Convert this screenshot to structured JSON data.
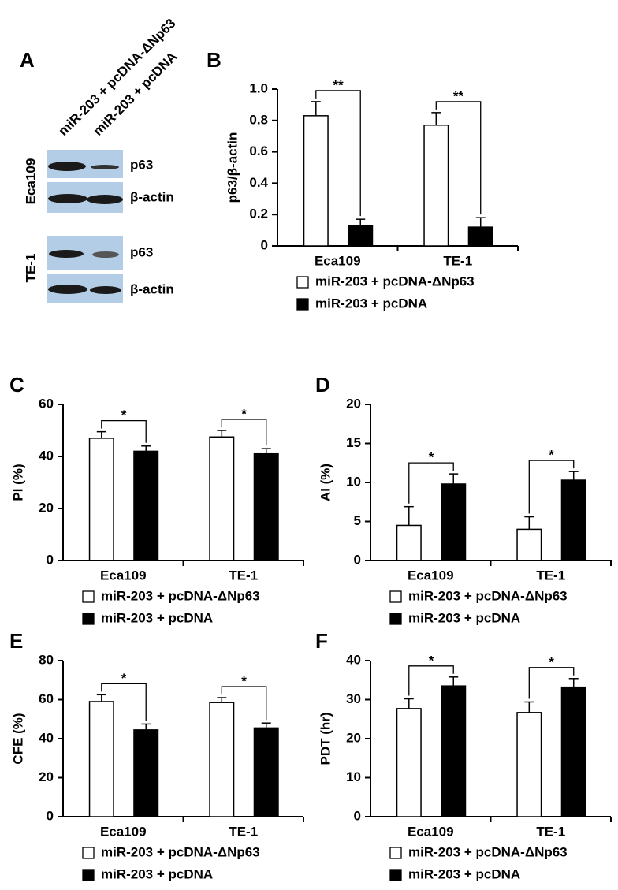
{
  "blot": {
    "panel_label": "A",
    "lanes": [
      "miR-203 + pcDNA-ΔNp63",
      "miR-203 + pcDNA"
    ],
    "cell_lines": [
      {
        "name": "Eca109",
        "bands": [
          "p63",
          "β-actin"
        ]
      },
      {
        "name": "TE-1",
        "bands": [
          "p63",
          "β-actin"
        ]
      }
    ]
  },
  "chart_data": [
    {
      "type": "bar",
      "panel_label": "B",
      "y_label": "p63/β-actin",
      "categories": [
        "Eca109",
        "TE-1"
      ],
      "series": [
        {
          "name": "miR-203 + pcDNA-ΔNp63",
          "color": "#ffffff",
          "values": [
            0.83,
            0.77
          ],
          "errors": [
            0.09,
            0.08
          ]
        },
        {
          "name": "miR-203 + pcDNA",
          "color": "#000000",
          "values": [
            0.13,
            0.12
          ],
          "errors": [
            0.04,
            0.06
          ]
        }
      ],
      "significance": [
        "**",
        "**"
      ],
      "ylim": [
        0,
        1.0
      ],
      "yticks": [
        0,
        0.2,
        0.4,
        0.6,
        0.8,
        {
          "value": 1.0,
          "label": "1.0"
        }
      ]
    },
    {
      "type": "bar",
      "panel_label": "C",
      "y_label": "PI (%)",
      "categories": [
        "Eca109",
        "TE-1"
      ],
      "series": [
        {
          "name": "miR-203 + pcDNA-ΔNp63",
          "color": "#ffffff",
          "values": [
            47,
            47.5
          ],
          "errors": [
            2.5,
            2.5
          ]
        },
        {
          "name": "miR-203 + pcDNA",
          "color": "#000000",
          "values": [
            42,
            41
          ],
          "errors": [
            2,
            2
          ]
        }
      ],
      "significance": [
        "*",
        "*"
      ],
      "ylim": [
        0,
        60
      ],
      "yticks": [
        0,
        20,
        40,
        60
      ]
    },
    {
      "type": "bar",
      "panel_label": "D",
      "y_label": "AI (%)",
      "categories": [
        "Eca109",
        "TE-1"
      ],
      "series": [
        {
          "name": "miR-203 + pcDNA-ΔNp63",
          "color": "#ffffff",
          "values": [
            4.5,
            4.0
          ],
          "errors": [
            2.4,
            1.6
          ]
        },
        {
          "name": "miR-203 + pcDNA",
          "color": "#000000",
          "values": [
            9.8,
            10.3
          ],
          "errors": [
            1.3,
            1.1
          ]
        }
      ],
      "significance": [
        "*",
        "*"
      ],
      "ylim": [
        0,
        20
      ],
      "yticks": [
        0,
        5,
        10,
        15,
        20
      ]
    },
    {
      "type": "bar",
      "panel_label": "E",
      "y_label": "CFE (%)",
      "categories": [
        "Eca109",
        "TE-1"
      ],
      "series": [
        {
          "name": "miR-203 + pcDNA-ΔNp63",
          "color": "#ffffff",
          "values": [
            59,
            58.5
          ],
          "errors": [
            3.5,
            2.5
          ]
        },
        {
          "name": "miR-203 + pcDNA",
          "color": "#000000",
          "values": [
            44.5,
            45.5
          ],
          "errors": [
            3,
            2.5
          ]
        }
      ],
      "significance": [
        "*",
        "*"
      ],
      "ylim": [
        0,
        80
      ],
      "yticks": [
        0,
        20,
        40,
        60,
        80
      ]
    },
    {
      "type": "bar",
      "panel_label": "F",
      "y_label": "PDT (hr)",
      "categories": [
        "Eca109",
        "TE-1"
      ],
      "series": [
        {
          "name": "miR-203 + pcDNA-ΔNp63",
          "color": "#ffffff",
          "values": [
            27.7,
            26.7
          ],
          "errors": [
            2.5,
            2.7
          ]
        },
        {
          "name": "miR-203 + pcDNA",
          "color": "#000000",
          "values": [
            33.5,
            33.2
          ],
          "errors": [
            2.3,
            2.2
          ]
        }
      ],
      "significance": [
        "*",
        "*"
      ],
      "ylim": [
        0,
        40
      ],
      "yticks": [
        0,
        10,
        20,
        30,
        40
      ]
    }
  ]
}
